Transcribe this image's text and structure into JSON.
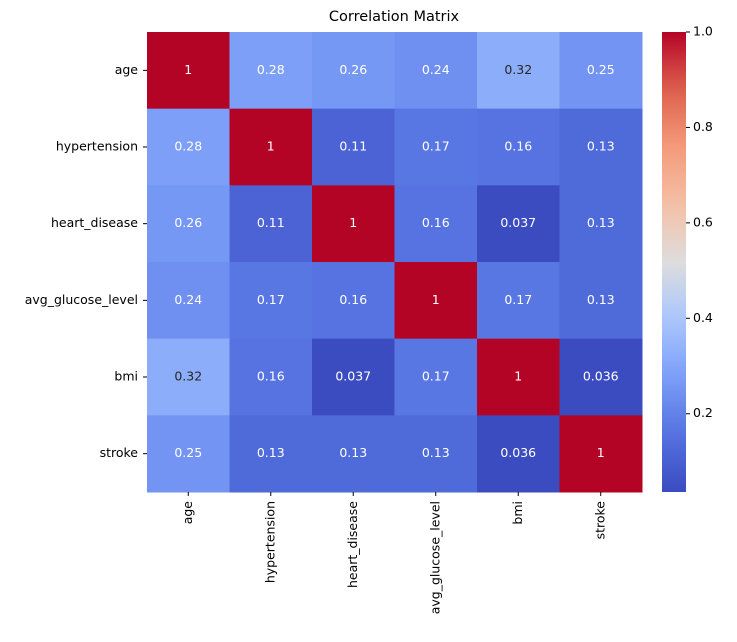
{
  "chart_data": {
    "type": "heatmap",
    "title": "Correlation Matrix",
    "x": [
      "age",
      "hypertension",
      "heart_disease",
      "avg_glucose_level",
      "bmi",
      "stroke"
    ],
    "y": [
      "age",
      "hypertension",
      "heart_disease",
      "avg_glucose_level",
      "bmi",
      "stroke"
    ],
    "values": [
      [
        1,
        0.28,
        0.26,
        0.24,
        0.32,
        0.25
      ],
      [
        0.28,
        1,
        0.11,
        0.17,
        0.16,
        0.13
      ],
      [
        0.26,
        0.11,
        1,
        0.16,
        0.037,
        0.13
      ],
      [
        0.24,
        0.17,
        0.16,
        1,
        0.17,
        0.13
      ],
      [
        0.32,
        0.16,
        0.037,
        0.17,
        1,
        0.036
      ],
      [
        0.25,
        0.13,
        0.13,
        0.13,
        0.036,
        1
      ]
    ],
    "colormap": "coolwarm",
    "zlim": [
      0.036,
      1
    ],
    "zticks": [
      0.2,
      0.4,
      0.6,
      0.8,
      {
        "value": 1,
        "label": "1.0"
      }
    ]
  }
}
